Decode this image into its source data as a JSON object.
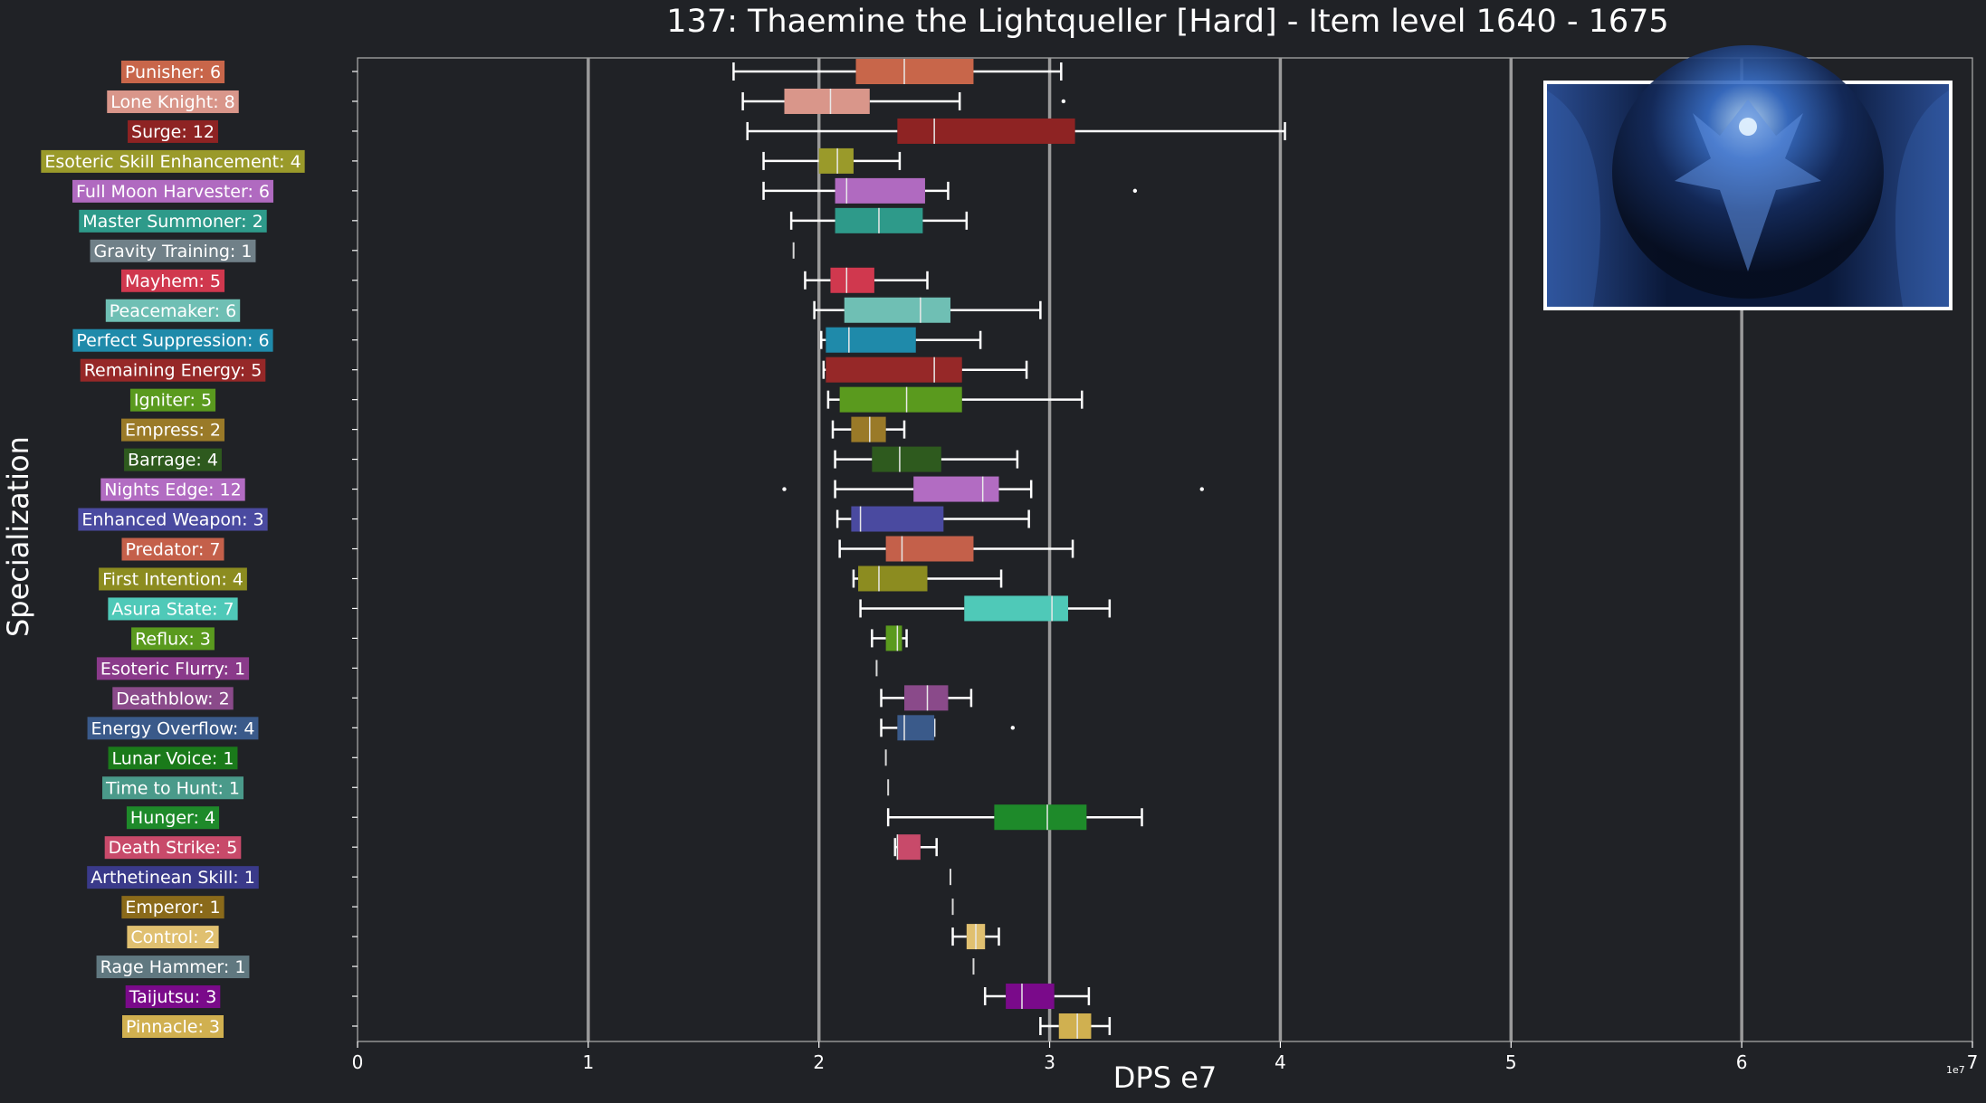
{
  "chart_data": {
    "type": "box",
    "title": "137: Thaemine the Lightqueller [Hard] - Item level 1640 - 1675",
    "xlabel": "DPS e7",
    "ylabel": "Specialization",
    "x_scale_note": "1e7",
    "xlim": [
      0,
      7
    ],
    "x_ticks": [
      "0",
      "1",
      "2",
      "3",
      "4",
      "5",
      "6",
      "7"
    ],
    "grid": "vertical",
    "series": [
      {
        "label": "Punisher: 6",
        "color": "#c8664a",
        "whisker_low": 1.63,
        "q1": 2.16,
        "median": 2.37,
        "q3": 2.67,
        "whisker_high": 3.05,
        "outliers": []
      },
      {
        "label": "Lone Knight: 8",
        "color": "#d9968a",
        "whisker_low": 1.67,
        "q1": 1.85,
        "median": 2.05,
        "q3": 2.22,
        "whisker_high": 2.61,
        "outliers": [
          3.06
        ]
      },
      {
        "label": "Surge: 12",
        "color": "#8e2323",
        "whisker_low": 1.69,
        "q1": 2.34,
        "median": 2.5,
        "q3": 3.11,
        "whisker_high": 4.02,
        "outliers": []
      },
      {
        "label": "Esoteric Skill Enhancement: 4",
        "color": "#9a9a2a",
        "whisker_low": 1.76,
        "q1": 2.0,
        "median": 2.08,
        "q3": 2.15,
        "whisker_high": 2.35,
        "outliers": []
      },
      {
        "label": "Full Moon Harvester: 6",
        "color": "#b06ac0",
        "whisker_low": 1.76,
        "q1": 2.07,
        "median": 2.12,
        "q3": 2.46,
        "whisker_high": 2.56,
        "outliers": [
          3.37
        ]
      },
      {
        "label": "Master Summoner: 2",
        "color": "#2e9a8a",
        "whisker_low": 1.88,
        "q1": 2.07,
        "median": 2.26,
        "q3": 2.45,
        "whisker_high": 2.64,
        "outliers": []
      },
      {
        "label": "Gravity Training: 1",
        "color": "#708088",
        "whisker_low": 1.89,
        "q1": 1.89,
        "median": 1.89,
        "q3": 1.89,
        "whisker_high": 1.89,
        "outliers": []
      },
      {
        "label": "Mayhem: 5",
        "color": "#d0384e",
        "whisker_low": 1.94,
        "q1": 2.05,
        "median": 2.12,
        "q3": 2.24,
        "whisker_high": 2.47,
        "outliers": []
      },
      {
        "label": "Peacemaker: 6",
        "color": "#6fbfb4",
        "whisker_low": 1.98,
        "q1": 2.11,
        "median": 2.44,
        "q3": 2.57,
        "whisker_high": 2.96,
        "outliers": []
      },
      {
        "label": "Perfect Suppression: 6",
        "color": "#1f8aaa",
        "whisker_low": 2.01,
        "q1": 2.03,
        "median": 2.13,
        "q3": 2.42,
        "whisker_high": 2.7,
        "outliers": []
      },
      {
        "label": "Remaining Energy: 5",
        "color": "#962828",
        "whisker_low": 2.02,
        "q1": 2.03,
        "median": 2.5,
        "q3": 2.62,
        "whisker_high": 2.9,
        "outliers": []
      },
      {
        "label": "Igniter: 5",
        "color": "#5a9a1e",
        "whisker_low": 2.04,
        "q1": 2.09,
        "median": 2.38,
        "q3": 2.62,
        "whisker_high": 3.14,
        "outliers": []
      },
      {
        "label": "Empress: 2",
        "color": "#9a7a28",
        "whisker_low": 2.06,
        "q1": 2.14,
        "median": 2.22,
        "q3": 2.29,
        "whisker_high": 2.37,
        "outliers": []
      },
      {
        "label": "Barrage: 4",
        "color": "#2e5a1e",
        "whisker_low": 2.07,
        "q1": 2.23,
        "median": 2.35,
        "q3": 2.53,
        "whisker_high": 2.86,
        "outliers": []
      },
      {
        "label": "Nights Edge: 12",
        "color": "#b26cc2",
        "whisker_low": 2.07,
        "q1": 2.41,
        "median": 2.71,
        "q3": 2.78,
        "whisker_high": 2.92,
        "outliers": [
          1.85,
          3.66
        ]
      },
      {
        "label": "Enhanced Weapon: 3",
        "color": "#4a4aa0",
        "whisker_low": 2.08,
        "q1": 2.14,
        "median": 2.18,
        "q3": 2.54,
        "whisker_high": 2.91,
        "outliers": []
      },
      {
        "label": "Predator: 7",
        "color": "#c4604a",
        "whisker_low": 2.09,
        "q1": 2.29,
        "median": 2.36,
        "q3": 2.67,
        "whisker_high": 3.1,
        "outliers": []
      },
      {
        "label": "First Intention: 4",
        "color": "#8c8c20",
        "whisker_low": 2.15,
        "q1": 2.17,
        "median": 2.26,
        "q3": 2.47,
        "whisker_high": 2.79,
        "outliers": []
      },
      {
        "label": "Asura State: 7",
        "color": "#4fc9b8",
        "whisker_low": 2.18,
        "q1": 2.63,
        "median": 3.01,
        "q3": 3.08,
        "whisker_high": 3.26,
        "outliers": []
      },
      {
        "label": "Reflux: 3",
        "color": "#5a9a1e",
        "whisker_low": 2.23,
        "q1": 2.29,
        "median": 2.34,
        "q3": 2.36,
        "whisker_high": 2.38,
        "outliers": []
      },
      {
        "label": "Esoteric Flurry: 1",
        "color": "#8a3a8a",
        "whisker_low": 2.25,
        "q1": 2.25,
        "median": 2.25,
        "q3": 2.25,
        "whisker_high": 2.25,
        "outliers": []
      },
      {
        "label": "Deathblow: 2",
        "color": "#8a4a8a",
        "whisker_low": 2.27,
        "q1": 2.37,
        "median": 2.47,
        "q3": 2.56,
        "whisker_high": 2.66,
        "outliers": []
      },
      {
        "label": "Energy Overflow: 4",
        "color": "#3a5a8a",
        "whisker_low": 2.27,
        "q1": 2.34,
        "median": 2.37,
        "q3": 2.5,
        "whisker_high": 2.5,
        "outliers": [
          2.84
        ]
      },
      {
        "label": "Lunar Voice: 1",
        "color": "#1a7a1a",
        "whisker_low": 2.29,
        "q1": 2.29,
        "median": 2.29,
        "q3": 2.29,
        "whisker_high": 2.29,
        "outliers": []
      },
      {
        "label": "Time to Hunt: 1",
        "color": "#4a9a8a",
        "whisker_low": 2.3,
        "q1": 2.3,
        "median": 2.3,
        "q3": 2.3,
        "whisker_high": 2.3,
        "outliers": []
      },
      {
        "label": "Hunger: 4",
        "color": "#1e8a2a",
        "whisker_low": 2.3,
        "q1": 2.76,
        "median": 2.99,
        "q3": 3.16,
        "whisker_high": 3.4,
        "outliers": []
      },
      {
        "label": "Death Strike: 5",
        "color": "#c84a6a",
        "whisker_low": 2.33,
        "q1": 2.34,
        "median": 2.34,
        "q3": 2.44,
        "whisker_high": 2.51,
        "outliers": []
      },
      {
        "label": "Arthetinean Skill: 1",
        "color": "#3a3a8a",
        "whisker_low": 2.57,
        "q1": 2.57,
        "median": 2.57,
        "q3": 2.57,
        "whisker_high": 2.57,
        "outliers": []
      },
      {
        "label": "Emperor: 1",
        "color": "#8a6a1a",
        "whisker_low": 2.58,
        "q1": 2.58,
        "median": 2.58,
        "q3": 2.58,
        "whisker_high": 2.58,
        "outliers": []
      },
      {
        "label": "Control: 2",
        "color": "#e0c070",
        "whisker_low": 2.58,
        "q1": 2.64,
        "median": 2.68,
        "q3": 2.72,
        "whisker_high": 2.78,
        "outliers": []
      },
      {
        "label": "Rage Hammer: 1",
        "color": "#607880",
        "whisker_low": 2.67,
        "q1": 2.67,
        "median": 2.67,
        "q3": 2.67,
        "whisker_high": 2.67,
        "outliers": []
      },
      {
        "label": "Taijutsu: 3",
        "color": "#7a0a8a",
        "whisker_low": 2.72,
        "q1": 2.81,
        "median": 2.88,
        "q3": 3.02,
        "whisker_high": 3.17,
        "outliers": []
      },
      {
        "label": "Pinnacle: 3",
        "color": "#d0b050",
        "whisker_low": 2.96,
        "q1": 3.04,
        "median": 3.12,
        "q3": 3.18,
        "whisker_high": 3.26,
        "outliers": []
      }
    ]
  }
}
